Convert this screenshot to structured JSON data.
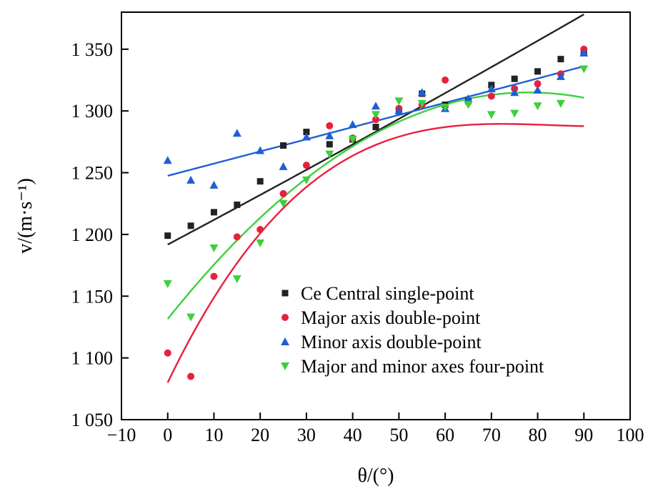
{
  "chart_data": {
    "type": "scatter",
    "title": "",
    "xlabel": "θ/(°)",
    "ylabel": "v/(m·s⁻¹)",
    "xlim": [
      -10,
      100
    ],
    "ylim": [
      1050,
      1380
    ],
    "xticks": [
      -10,
      0,
      10,
      20,
      30,
      40,
      50,
      60,
      70,
      80,
      90,
      100
    ],
    "xtick_labels": [
      "−10",
      "0",
      "10",
      "20",
      "30",
      "40",
      "50",
      "60",
      "70",
      "80",
      "90",
      "100"
    ],
    "yticks": [
      1050,
      1100,
      1150,
      1200,
      1250,
      1300,
      1350
    ],
    "ytick_labels": [
      "1 050",
      "1 100",
      "1 150",
      "1 200",
      "1 250",
      "1 300",
      "1 350"
    ],
    "legend_position": "bottom-right",
    "series": [
      {
        "name": "Ce  Central single-point",
        "color": "#222222",
        "marker": "square",
        "x": [
          0,
          5,
          10,
          15,
          20,
          25,
          30,
          35,
          40,
          45,
          50,
          55,
          60,
          65,
          70,
          75,
          80,
          85,
          90
        ],
        "y": [
          1199,
          1207,
          1218,
          1224,
          1243,
          1272,
          1283,
          1273,
          1277,
          1287,
          1300,
          1314,
          1305,
          1308,
          1321,
          1326,
          1332,
          1342,
          1347
        ],
        "fit": [
          1191.8,
          1.99,
          0.0009
        ]
      },
      {
        "name": "Major axis double-point",
        "color": "#e8203c",
        "marker": "circle",
        "x": [
          0,
          5,
          10,
          15,
          20,
          25,
          30,
          35,
          40,
          45,
          50,
          55,
          60,
          65,
          70,
          75,
          80,
          85,
          90
        ],
        "y": [
          1104,
          1085,
          1166,
          1198,
          1204,
          1233,
          1256,
          1288,
          1278,
          1293,
          1302,
          1305,
          1325,
          1307,
          1312,
          1318,
          1322,
          1330,
          1350
        ],
        "fit": [
          1080,
          3e-09,
          0.5,
          7.8
        ]
      },
      {
        "name": "Minor axis double-point",
        "color": "#1f5fd6",
        "marker": "triangle-up",
        "x": [
          0,
          5,
          10,
          15,
          20,
          25,
          30,
          35,
          40,
          45,
          50,
          55,
          60,
          65,
          70,
          75,
          80,
          85,
          90
        ],
        "y": [
          1260,
          1244,
          1240,
          1282,
          1268,
          1255,
          1279,
          1280,
          1289,
          1304,
          1300,
          1315,
          1302,
          1310,
          1318,
          1315,
          1317,
          1328,
          1347
        ],
        "fit": [
          1247.5,
          0.985
        ]
      },
      {
        "name": "Major and minor axes four-point",
        "color": "#3ecf3e",
        "marker": "triangle-down",
        "x": [
          0,
          5,
          10,
          15,
          20,
          25,
          30,
          35,
          40,
          45,
          50,
          55,
          60,
          65,
          70,
          75,
          80,
          85,
          90
        ],
        "y": [
          1160,
          1133,
          1189,
          1164,
          1193,
          1225,
          1244,
          1265,
          1277,
          1297,
          1308,
          1306,
          1303,
          1305,
          1297,
          1298,
          1304,
          1306,
          1334
        ],
        "fit": [
          1131.5,
          4.7,
          -0.0301
        ]
      }
    ]
  }
}
